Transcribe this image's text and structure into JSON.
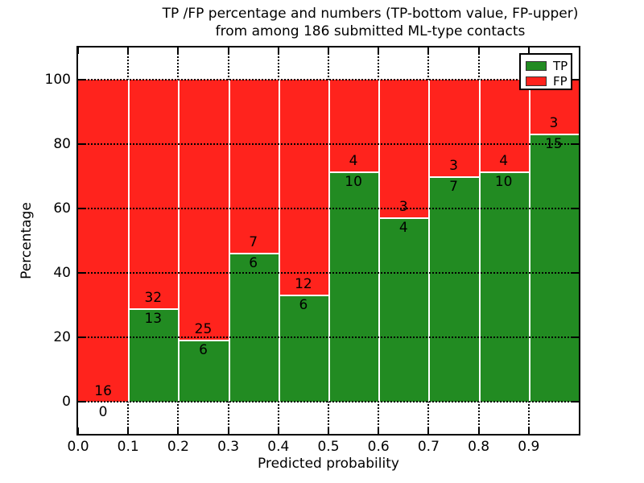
{
  "title": {
    "line1": "TP /FP percentage and numbers (TP-bottom value, FP-upper)",
    "line2": "from among 186 submitted ML-type contacts"
  },
  "chart_data": {
    "type": "bar",
    "stacked": true,
    "title": "TP /FP percentage and numbers (TP-bottom value, FP-upper) from among 186 submitted ML-type contacts",
    "xlabel": "Predicted probability",
    "ylabel": "Percentage",
    "xlim": [
      0.0,
      1.0
    ],
    "ylim": [
      -10,
      110
    ],
    "grid": true,
    "bin_width": 0.1,
    "categories": [
      "0.0-0.1",
      "0.1-0.2",
      "0.2-0.3",
      "0.3-0.4",
      "0.4-0.5",
      "0.5-0.6",
      "0.6-0.7",
      "0.7-0.8",
      "0.8-0.9",
      "0.9-1.0"
    ],
    "x_ticks": [
      {
        "label": "0.0",
        "value": 0.0
      },
      {
        "label": "0.1",
        "value": 0.1
      },
      {
        "label": "0.2",
        "value": 0.2
      },
      {
        "label": "0.3",
        "value": 0.3
      },
      {
        "label": "0.4",
        "value": 0.4
      },
      {
        "label": "0.5",
        "value": 0.5
      },
      {
        "label": "0.6",
        "value": 0.6
      },
      {
        "label": "0.7",
        "value": 0.7
      },
      {
        "label": "0.8",
        "value": 0.8
      },
      {
        "label": "0.9",
        "value": 0.9
      }
    ],
    "y_ticks": [
      {
        "label": "0",
        "value": 0
      },
      {
        "label": "20",
        "value": 20
      },
      {
        "label": "40",
        "value": 40
      },
      {
        "label": "60",
        "value": 60
      },
      {
        "label": "80",
        "value": 80
      },
      {
        "label": "100",
        "value": 100
      }
    ],
    "series": [
      {
        "name": "TP",
        "color": "#228B22",
        "values": [
          0,
          13,
          6,
          6,
          6,
          10,
          4,
          7,
          10,
          15
        ]
      },
      {
        "name": "FP",
        "color": "#FF231D",
        "values": [
          16,
          32,
          25,
          7,
          12,
          4,
          3,
          3,
          4,
          3
        ]
      }
    ],
    "tp_percent": [
      0,
      28.89,
      19.35,
      46.15,
      33.33,
      71.43,
      57.14,
      70.0,
      71.43,
      83.33
    ],
    "stack_top_percent": 100,
    "total_contacts": 186,
    "legend": {
      "position": "upper right",
      "entries": [
        {
          "label": "TP",
          "color": "#228B22"
        },
        {
          "label": "FP",
          "color": "#FF231D"
        }
      ]
    }
  },
  "colors": {
    "tp": "#228B22",
    "fp": "#FF231D",
    "grid": "#000000",
    "frame": "#000000",
    "background": "#FFFFFF"
  }
}
